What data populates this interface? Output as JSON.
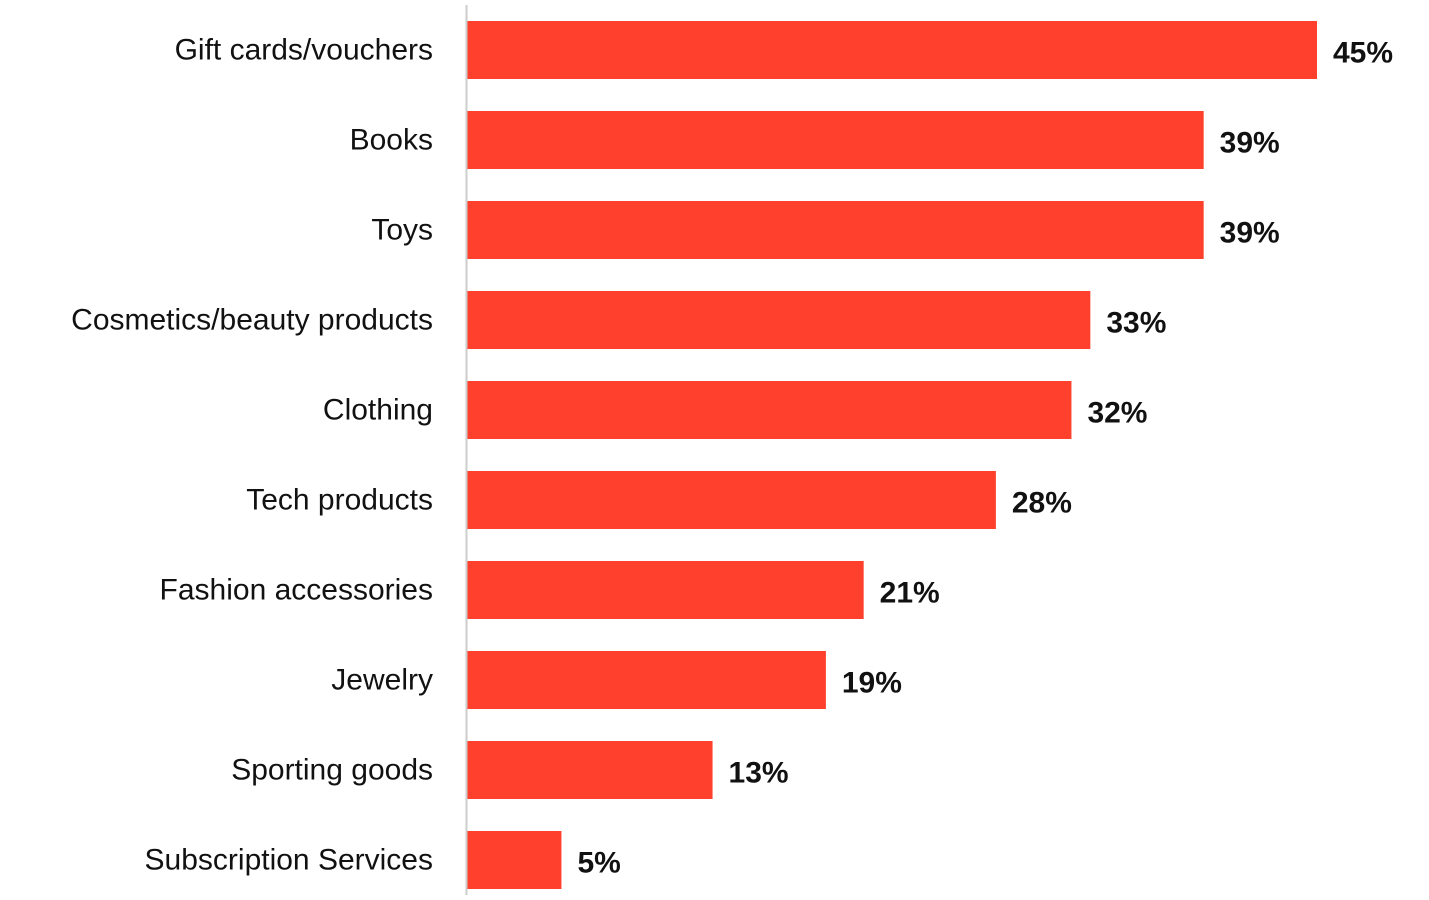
{
  "chart_data": {
    "type": "bar",
    "orientation": "horizontal",
    "title": "",
    "xlabel": "",
    "ylabel": "",
    "categories": [
      "Gift cards/vouchers",
      "Books",
      "Toys",
      "Cosmetics/beauty products",
      "Clothing",
      "Tech products",
      "Fashion accessories",
      "Jewelry",
      "Sporting goods",
      "Subscription Services"
    ],
    "values": [
      45,
      39,
      39,
      33,
      32,
      28,
      21,
      19,
      13,
      5
    ],
    "value_labels": [
      "45%",
      "39%",
      "39%",
      "33%",
      "32%",
      "28%",
      "21%",
      "19%",
      "13%",
      "5%"
    ],
    "xlim": [
      0,
      45
    ],
    "grid": false,
    "legend": "none",
    "colors": {
      "bar": "#FF402D",
      "axis": "#CCCCCC",
      "text": "#111111"
    }
  }
}
